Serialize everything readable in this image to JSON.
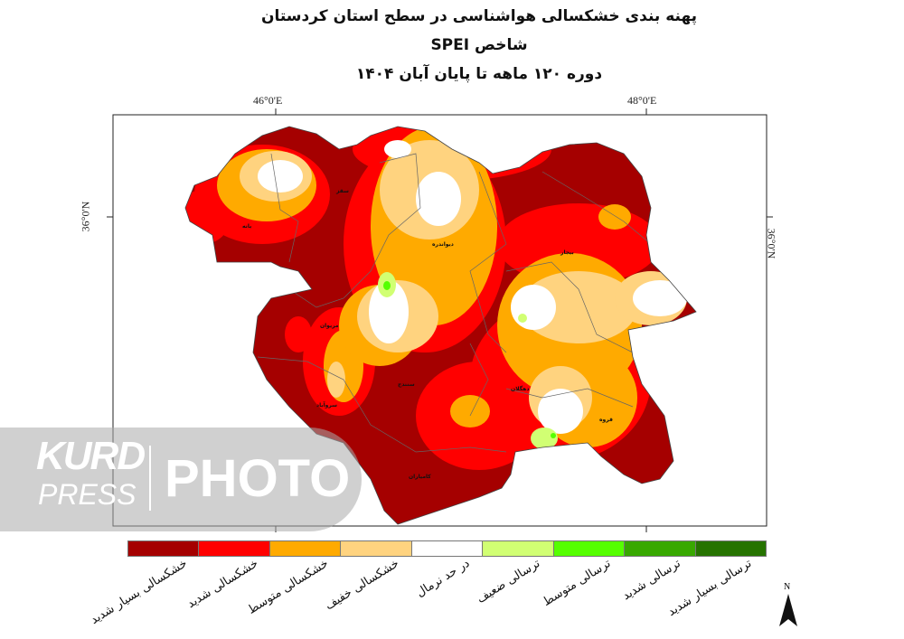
{
  "header": {
    "title": "پهنه بندی خشکسالی هواشناسی در سطح استان کردستان",
    "index": "شاخص SPEI",
    "period": "دوره ۱۲۰ ماهه تا پایان  آبان ۱۴۰۴"
  },
  "graticule": {
    "lon_left": "46°0'E",
    "lon_right": "48°0'E",
    "lat_left": "36°0'N",
    "lat_right": "36°0'N"
  },
  "cities": [
    "سقز",
    "بانه",
    "دیواندره",
    "بیجار",
    "مریوان",
    "سنندج",
    "سروآباد",
    "دهگلان",
    "قروه",
    "کامیاران"
  ],
  "legend": {
    "classes": [
      {
        "label": "خشکسالی بسیار شدید",
        "color": "#a50000"
      },
      {
        "label": "خشکسالی شدید",
        "color": "#ff0000"
      },
      {
        "label": "خشکسالی متوسط",
        "color": "#ffaa00"
      },
      {
        "label": "خشکسالی خفیف",
        "color": "#ffd37f"
      },
      {
        "label": "در حد نرمال",
        "color": "#ffffff"
      },
      {
        "label": "ترسالی ضعیف",
        "color": "#d1ff73"
      },
      {
        "label": "ترسالی متوسط",
        "color": "#55ff00"
      },
      {
        "label": "ترسالی شدید",
        "color": "#38a800"
      },
      {
        "label": "ترسالی بسیار شدید",
        "color": "#267300"
      }
    ]
  },
  "north_arrow": {
    "label": "N",
    "icon": "north-arrow-icon"
  },
  "watermark": {
    "brand_top": "KURD",
    "brand_bottom": "PRESS",
    "word": "PHOTO"
  }
}
